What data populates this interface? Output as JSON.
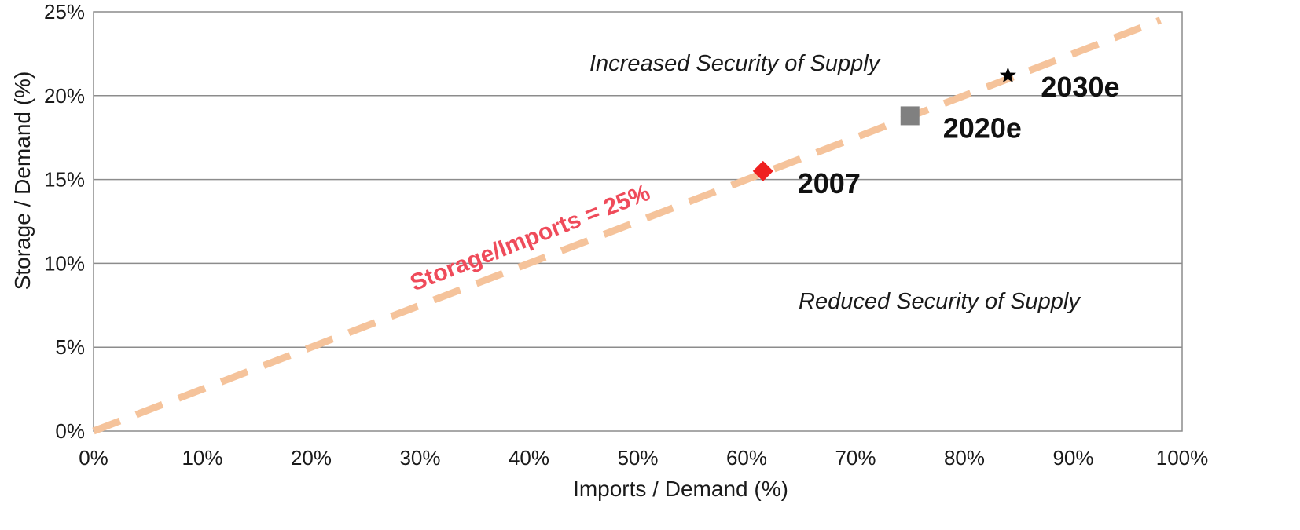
{
  "chart_data": {
    "type": "scatter",
    "xlabel": "Imports / Demand (%)",
    "ylabel": "Storage / Demand (%)",
    "xlim": [
      0,
      100
    ],
    "ylim": [
      0,
      25
    ],
    "x_ticks": [
      "0%",
      "10%",
      "20%",
      "30%",
      "40%",
      "50%",
      "60%",
      "70%",
      "80%",
      "90%",
      "100%"
    ],
    "y_ticks": [
      "0%",
      "5%",
      "10%",
      "15%",
      "20%",
      "25%"
    ],
    "gridlines": "horizontal",
    "series": [
      {
        "name": "2007",
        "marker": "diamond",
        "color": "#ef2020",
        "x": 61.5,
        "y": 15.5
      },
      {
        "name": "2020e",
        "marker": "square",
        "color": "#808080",
        "x": 75,
        "y": 18.8
      },
      {
        "name": "2030e",
        "marker": "star",
        "color": "#000000",
        "x": 84,
        "y": 21.2
      }
    ],
    "reference_line": {
      "label": "Storage/Imports = 25%",
      "slope": 0.25,
      "x": [
        0,
        98
      ],
      "color": "#f5c39b",
      "style": "dashed"
    },
    "annotations": {
      "upper": "Increased Security of Supply",
      "lower": "Reduced Security of Supply"
    }
  }
}
